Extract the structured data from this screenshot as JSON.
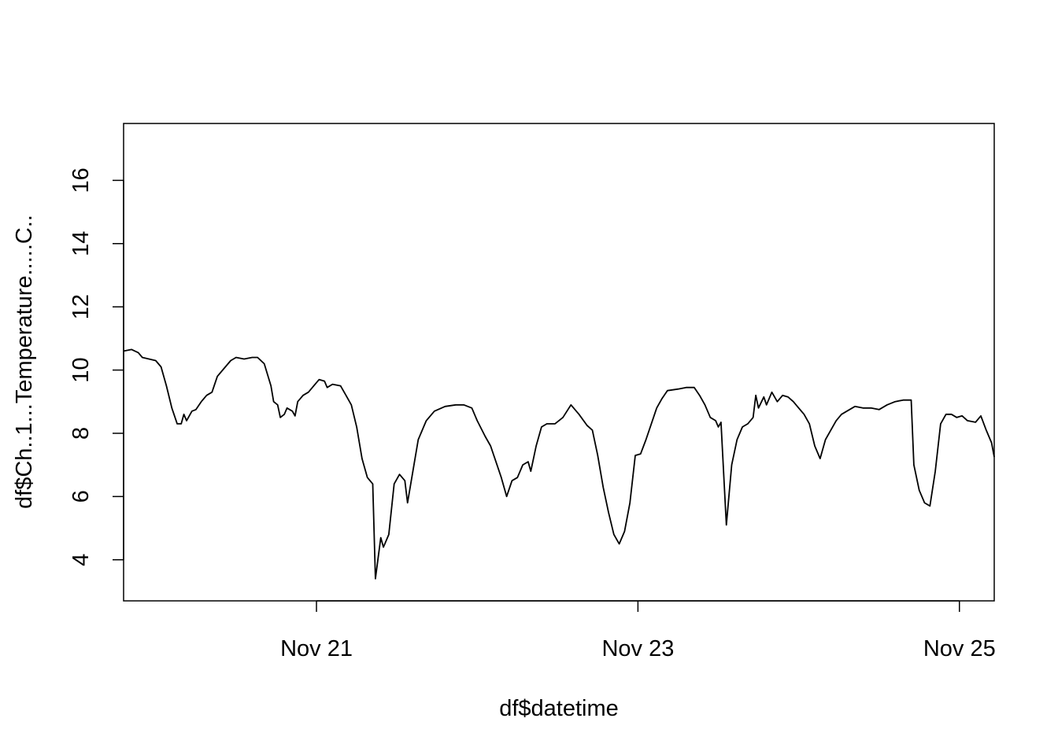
{
  "chart_data": {
    "type": "line",
    "title": "",
    "xlabel": "df$datetime",
    "ylabel": "df$Ch..1...Temperature.....C..",
    "x_unit": "date",
    "xlim": [
      "2020-11-19 19:12",
      "2020-11-25 05:12"
    ],
    "ylim": [
      2.7,
      17.8
    ],
    "x_ticks": [
      {
        "x": "2020-11-21 00:00",
        "label": "Nov 21"
      },
      {
        "x": "2020-11-23 00:00",
        "label": "Nov 23"
      },
      {
        "x": "2020-11-25 00:00",
        "label": "Nov 25"
      }
    ],
    "y_ticks": [
      4,
      6,
      8,
      10,
      12,
      14,
      16
    ],
    "grid": false,
    "series": [
      {
        "color": "#000000",
        "points": [
          [
            "2020-11-19 19:12",
            10.6
          ],
          [
            "2020-11-19 20:24",
            10.65
          ],
          [
            "2020-11-19 21:24",
            10.55
          ],
          [
            "2020-11-19 22:00",
            10.4
          ],
          [
            "2020-11-19 23:00",
            10.35
          ],
          [
            "2020-11-20 00:00",
            10.3
          ],
          [
            "2020-11-20 00:48",
            10.1
          ],
          [
            "2020-11-20 01:36",
            9.5
          ],
          [
            "2020-11-20 02:24",
            8.8
          ],
          [
            "2020-11-20 03:12",
            8.3
          ],
          [
            "2020-11-20 03:48",
            8.3
          ],
          [
            "2020-11-20 04:12",
            8.6
          ],
          [
            "2020-11-20 04:36",
            8.4
          ],
          [
            "2020-11-20 05:24",
            8.7
          ],
          [
            "2020-11-20 06:00",
            8.75
          ],
          [
            "2020-11-20 06:48",
            9.0
          ],
          [
            "2020-11-20 07:36",
            9.2
          ],
          [
            "2020-11-20 08:24",
            9.3
          ],
          [
            "2020-11-20 09:12",
            9.8
          ],
          [
            "2020-11-20 10:00",
            10.0
          ],
          [
            "2020-11-20 11:12",
            10.3
          ],
          [
            "2020-11-20 12:00",
            10.4
          ],
          [
            "2020-11-20 13:12",
            10.35
          ],
          [
            "2020-11-20 14:24",
            10.4
          ],
          [
            "2020-11-20 15:12",
            10.4
          ],
          [
            "2020-11-20 16:12",
            10.2
          ],
          [
            "2020-11-20 17:12",
            9.5
          ],
          [
            "2020-11-20 17:36",
            9.0
          ],
          [
            "2020-11-20 18:12",
            8.9
          ],
          [
            "2020-11-20 18:36",
            8.5
          ],
          [
            "2020-11-20 19:12",
            8.6
          ],
          [
            "2020-11-20 19:36",
            8.8
          ],
          [
            "2020-11-20 20:24",
            8.7
          ],
          [
            "2020-11-20 20:48",
            8.55
          ],
          [
            "2020-11-20 21:12",
            9.0
          ],
          [
            "2020-11-20 22:00",
            9.2
          ],
          [
            "2020-11-20 22:48",
            9.3
          ],
          [
            "2020-11-20 23:36",
            9.5
          ],
          [
            "2020-11-21 00:24",
            9.7
          ],
          [
            "2020-11-21 01:12",
            9.65
          ],
          [
            "2020-11-21 01:36",
            9.45
          ],
          [
            "2020-11-21 02:24",
            9.55
          ],
          [
            "2020-11-21 03:36",
            9.5
          ],
          [
            "2020-11-21 04:24",
            9.2
          ],
          [
            "2020-11-21 05:12",
            8.9
          ],
          [
            "2020-11-21 06:00",
            8.2
          ],
          [
            "2020-11-21 06:48",
            7.2
          ],
          [
            "2020-11-21 07:36",
            6.6
          ],
          [
            "2020-11-21 08:24",
            6.4
          ],
          [
            "2020-11-21 08:48",
            3.4
          ],
          [
            "2020-11-21 09:36",
            4.7
          ],
          [
            "2020-11-21 10:00",
            4.4
          ],
          [
            "2020-11-21 10:48",
            4.8
          ],
          [
            "2020-11-21 11:36",
            6.4
          ],
          [
            "2020-11-21 12:24",
            6.7
          ],
          [
            "2020-11-21 13:12",
            6.5
          ],
          [
            "2020-11-21 13:36",
            5.8
          ],
          [
            "2020-11-21 14:24",
            6.8
          ],
          [
            "2020-11-21 15:12",
            7.8
          ],
          [
            "2020-11-21 16:24",
            8.4
          ],
          [
            "2020-11-21 17:36",
            8.7
          ],
          [
            "2020-11-21 19:12",
            8.85
          ],
          [
            "2020-11-21 20:48",
            8.9
          ],
          [
            "2020-11-21 22:00",
            8.9
          ],
          [
            "2020-11-21 23:12",
            8.8
          ],
          [
            "2020-11-22 00:00",
            8.4
          ],
          [
            "2020-11-22 01:12",
            7.9
          ],
          [
            "2020-11-22 02:00",
            7.6
          ],
          [
            "2020-11-22 02:48",
            7.1
          ],
          [
            "2020-11-22 03:36",
            6.6
          ],
          [
            "2020-11-22 04:24",
            6.0
          ],
          [
            "2020-11-22 05:12",
            6.5
          ],
          [
            "2020-11-22 06:00",
            6.6
          ],
          [
            "2020-11-22 06:48",
            7.0
          ],
          [
            "2020-11-22 07:36",
            7.1
          ],
          [
            "2020-11-22 08:00",
            6.8
          ],
          [
            "2020-11-22 08:48",
            7.6
          ],
          [
            "2020-11-22 09:36",
            8.2
          ],
          [
            "2020-11-22 10:24",
            8.3
          ],
          [
            "2020-11-22 11:36",
            8.3
          ],
          [
            "2020-11-22 12:48",
            8.5
          ],
          [
            "2020-11-22 14:00",
            8.9
          ],
          [
            "2020-11-22 15:12",
            8.6
          ],
          [
            "2020-11-22 16:24",
            8.25
          ],
          [
            "2020-11-22 17:12",
            8.1
          ],
          [
            "2020-11-22 18:00",
            7.3
          ],
          [
            "2020-11-22 18:48",
            6.3
          ],
          [
            "2020-11-22 19:36",
            5.5
          ],
          [
            "2020-11-22 20:24",
            4.8
          ],
          [
            "2020-11-22 21:12",
            4.5
          ],
          [
            "2020-11-22 22:00",
            4.9
          ],
          [
            "2020-11-22 22:48",
            5.8
          ],
          [
            "2020-11-22 23:36",
            7.3
          ],
          [
            "2020-11-23 00:24",
            7.35
          ],
          [
            "2020-11-23 01:12",
            7.8
          ],
          [
            "2020-11-23 02:00",
            8.3
          ],
          [
            "2020-11-23 02:48",
            8.8
          ],
          [
            "2020-11-23 03:36",
            9.1
          ],
          [
            "2020-11-23 04:24",
            9.35
          ],
          [
            "2020-11-23 06:00",
            9.4
          ],
          [
            "2020-11-23 07:12",
            9.45
          ],
          [
            "2020-11-23 08:24",
            9.45
          ],
          [
            "2020-11-23 09:12",
            9.2
          ],
          [
            "2020-11-23 10:00",
            8.9
          ],
          [
            "2020-11-23 10:48",
            8.5
          ],
          [
            "2020-11-23 11:36",
            8.4
          ],
          [
            "2020-11-23 12:00",
            8.2
          ],
          [
            "2020-11-23 12:24",
            8.35
          ],
          [
            "2020-11-23 13:12",
            5.1
          ],
          [
            "2020-11-23 14:00",
            7.0
          ],
          [
            "2020-11-23 14:48",
            7.8
          ],
          [
            "2020-11-23 15:36",
            8.2
          ],
          [
            "2020-11-23 16:24",
            8.3
          ],
          [
            "2020-11-23 17:12",
            8.5
          ],
          [
            "2020-11-23 17:36",
            9.2
          ],
          [
            "2020-11-23 18:00",
            8.8
          ],
          [
            "2020-11-23 18:48",
            9.15
          ],
          [
            "2020-11-23 19:12",
            8.9
          ],
          [
            "2020-11-23 20:00",
            9.3
          ],
          [
            "2020-11-23 20:48",
            9.0
          ],
          [
            "2020-11-23 21:36",
            9.2
          ],
          [
            "2020-11-23 22:24",
            9.15
          ],
          [
            "2020-11-23 23:12",
            9.0
          ],
          [
            "2020-11-24 00:00",
            8.8
          ],
          [
            "2020-11-24 00:48",
            8.6
          ],
          [
            "2020-11-24 01:36",
            8.3
          ],
          [
            "2020-11-24 02:24",
            7.6
          ],
          [
            "2020-11-24 03:12",
            7.2
          ],
          [
            "2020-11-24 04:00",
            7.8
          ],
          [
            "2020-11-24 04:48",
            8.1
          ],
          [
            "2020-11-24 05:36",
            8.4
          ],
          [
            "2020-11-24 06:24",
            8.6
          ],
          [
            "2020-11-24 07:36",
            8.75
          ],
          [
            "2020-11-24 08:24",
            8.85
          ],
          [
            "2020-11-24 09:36",
            8.8
          ],
          [
            "2020-11-24 10:48",
            8.8
          ],
          [
            "2020-11-24 12:00",
            8.75
          ],
          [
            "2020-11-24 13:12",
            8.9
          ],
          [
            "2020-11-24 14:24",
            9.0
          ],
          [
            "2020-11-24 15:36",
            9.05
          ],
          [
            "2020-11-24 16:48",
            9.05
          ],
          [
            "2020-11-24 17:12",
            7.0
          ],
          [
            "2020-11-24 18:00",
            6.2
          ],
          [
            "2020-11-24 18:48",
            5.8
          ],
          [
            "2020-11-24 19:36",
            5.7
          ],
          [
            "2020-11-24 20:24",
            6.8
          ],
          [
            "2020-11-24 21:12",
            8.3
          ],
          [
            "2020-11-24 22:00",
            8.6
          ],
          [
            "2020-11-24 22:48",
            8.6
          ],
          [
            "2020-11-24 23:36",
            8.5
          ],
          [
            "2020-11-25 00:24",
            8.55
          ],
          [
            "2020-11-25 01:12",
            8.4
          ],
          [
            "2020-11-25 02:24",
            8.35
          ],
          [
            "2020-11-25 03:12",
            8.55
          ],
          [
            "2020-11-25 04:00",
            8.1
          ],
          [
            "2020-11-25 04:48",
            7.7
          ],
          [
            "2020-11-25 05:12",
            7.25
          ]
        ]
      }
    ]
  }
}
